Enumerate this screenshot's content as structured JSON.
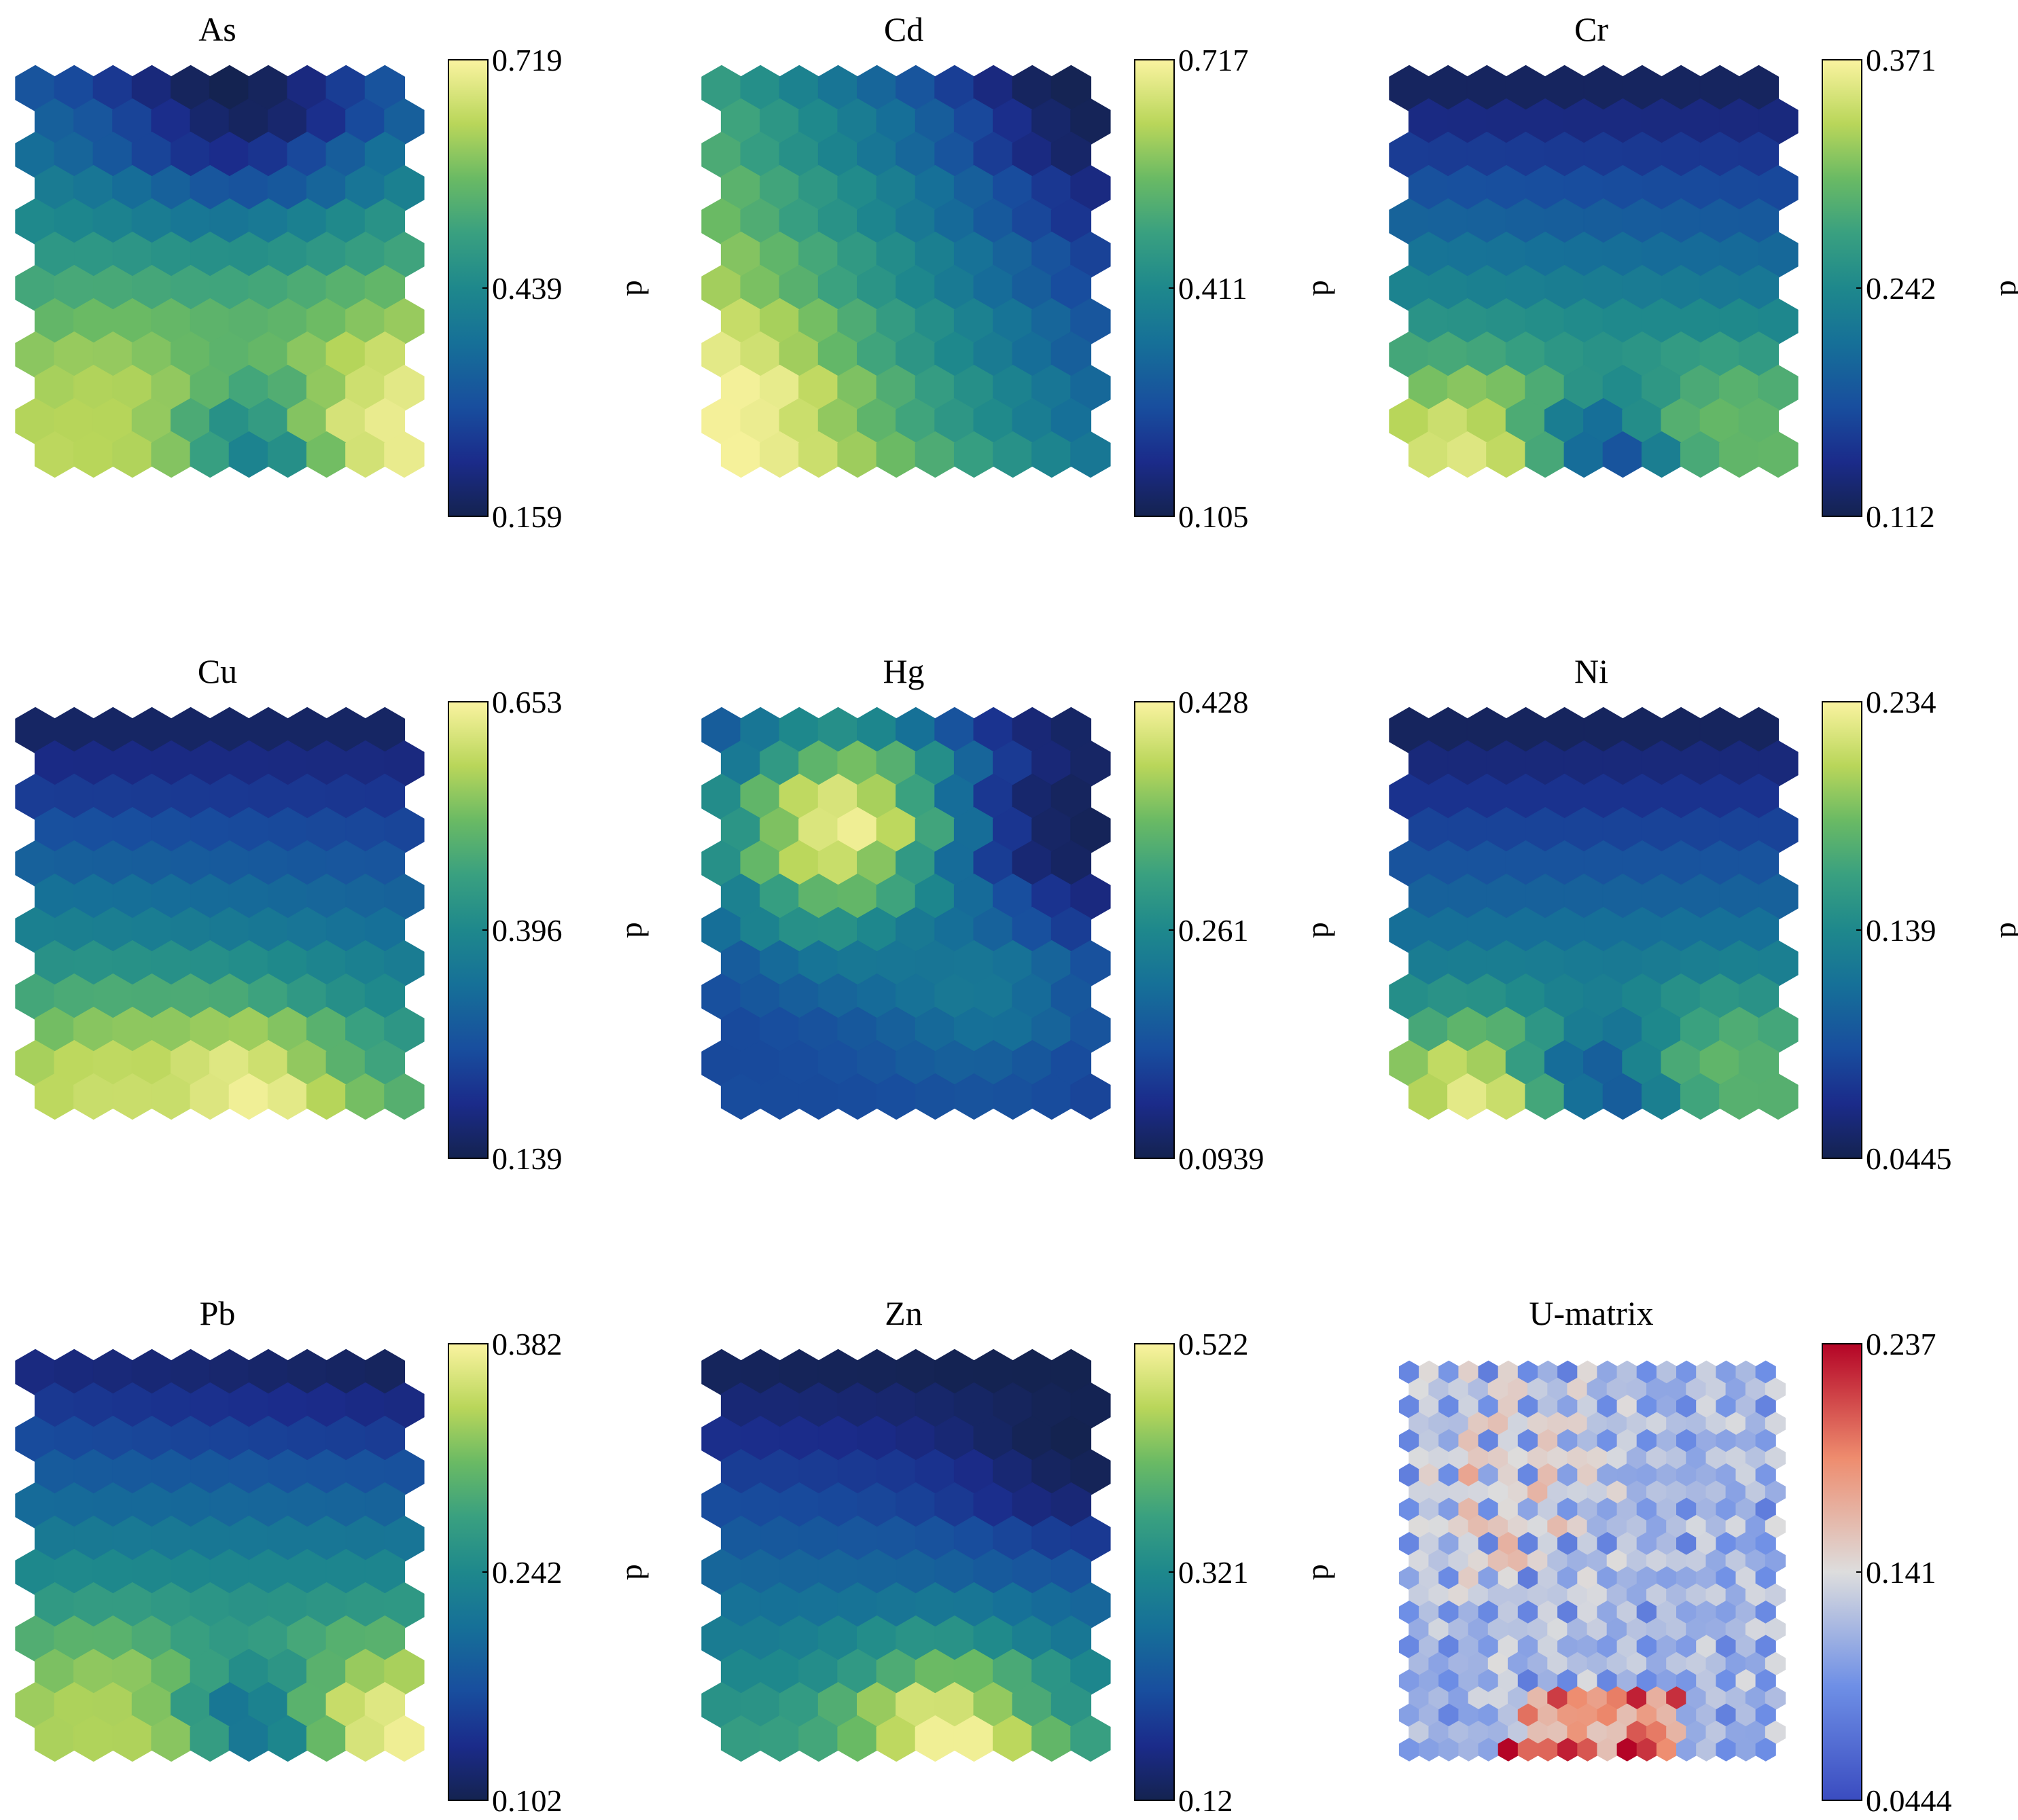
{
  "chart_data": {
    "type": "heatmap",
    "subtype": "SOM component planes (hexagonal)",
    "grid": {
      "rows": 12,
      "cols": 10,
      "cell": "hexagon"
    },
    "colorbar_label": "d",
    "panels": [
      {
        "title": "As",
        "colormap": "YlGnBu",
        "ticks": [
          "0.159",
          "0.439",
          "0.719"
        ],
        "range": [
          0.159,
          0.719
        ],
        "corners": {
          "top_left": 0.33,
          "top_right": 0.36,
          "bottom_left": 0.66,
          "bottom_right": 0.72
        },
        "features": [
          {
            "row": 0.0,
            "col": 5.0,
            "value": 0.16,
            "spread": 2.5
          },
          {
            "row": 11.0,
            "col": 5.0,
            "value": 0.36,
            "spread": 1.8
          },
          {
            "row": 10.0,
            "col": 9.5,
            "value": 0.7,
            "spread": 1.8
          },
          {
            "row": 10.0,
            "col": 1.5,
            "value": 0.64,
            "spread": 2.0
          }
        ]
      },
      {
        "title": "Cd",
        "colormap": "YlGnBu",
        "ticks": [
          "0.105",
          "0.411",
          "0.717"
        ],
        "range": [
          0.105,
          0.717
        ],
        "corners": {
          "top_left": 0.47,
          "top_right": 0.12,
          "bottom_left": 0.71,
          "bottom_right": 0.36
        },
        "features": [
          {
            "row": 9.5,
            "col": 0.0,
            "value": 0.71,
            "spread": 1.6
          },
          {
            "row": 0.0,
            "col": 9.5,
            "value": 0.11,
            "spread": 1.8
          }
        ]
      },
      {
        "title": "Cr",
        "colormap": "YlGnBu",
        "ticks": [
          "0.112",
          "0.242",
          "0.371"
        ],
        "range": [
          0.112,
          0.371
        ],
        "corners": {
          "top_left": 0.12,
          "top_right": 0.12,
          "bottom_left": 0.33,
          "bottom_right": 0.3
        },
        "features": [
          {
            "row": 11.0,
            "col": 1.5,
            "value": 0.36,
            "spread": 1.5
          },
          {
            "row": 11.0,
            "col": 5.0,
            "value": 0.17,
            "spread": 1.4
          },
          {
            "row": 10.0,
            "col": 8.0,
            "value": 0.3,
            "spread": 1.4
          }
        ]
      },
      {
        "title": "Cu",
        "colormap": "YlGnBu",
        "ticks": [
          "0.139",
          "0.396",
          "0.653"
        ],
        "range": [
          0.139,
          0.653
        ],
        "corners": {
          "top_left": 0.16,
          "top_right": 0.16,
          "bottom_left": 0.55,
          "bottom_right": 0.48
        },
        "features": [
          {
            "row": 11.0,
            "col": 5.0,
            "value": 0.65,
            "spread": 1.8
          },
          {
            "row": 11.0,
            "col": 1.5,
            "value": 0.6,
            "spread": 1.8
          }
        ]
      },
      {
        "title": "Hg",
        "colormap": "YlGnBu",
        "ticks": [
          "0.0939",
          "0.261",
          "0.428"
        ],
        "range": [
          0.0939,
          0.428
        ],
        "corners": {
          "top_left": 0.11,
          "top_right": 0.1,
          "bottom_left": 0.17,
          "bottom_right": 0.15
        },
        "features": [
          {
            "row": 3.0,
            "col": 3.0,
            "value": 0.43,
            "spread": 2.6
          },
          {
            "row": 7.5,
            "col": 6.5,
            "value": 0.24,
            "spread": 2.2
          },
          {
            "row": 3.0,
            "col": 9.0,
            "value": 0.1,
            "spread": 2.0
          }
        ]
      },
      {
        "title": "Ni",
        "colormap": "YlGnBu",
        "ticks": [
          "0.0445",
          "0.139",
          "0.234"
        ],
        "range": [
          0.0445,
          0.234
        ],
        "corners": {
          "top_left": 0.05,
          "top_right": 0.05,
          "bottom_left": 0.17,
          "bottom_right": 0.17
        },
        "features": [
          {
            "row": 11.0,
            "col": 1.5,
            "value": 0.23,
            "spread": 1.5
          },
          {
            "row": 10.5,
            "col": 5.0,
            "value": 0.09,
            "spread": 1.4
          },
          {
            "row": 10.0,
            "col": 8.0,
            "value": 0.18,
            "spread": 1.4
          }
        ]
      },
      {
        "title": "Pb",
        "colormap": "YlGnBu",
        "ticks": [
          "0.102",
          "0.242",
          "0.382"
        ],
        "range": [
          0.102,
          0.382
        ],
        "corners": {
          "top_left": 0.13,
          "top_right": 0.11,
          "bottom_left": 0.33,
          "bottom_right": 0.34
        },
        "features": [
          {
            "row": 11.0,
            "col": 8.5,
            "value": 0.38,
            "spread": 1.7
          },
          {
            "row": 10.5,
            "col": 5.0,
            "value": 0.19,
            "spread": 1.4
          },
          {
            "row": 10.5,
            "col": 1.5,
            "value": 0.34,
            "spread": 1.8
          }
        ]
      },
      {
        "title": "Zn",
        "colormap": "YlGnBu",
        "ticks": [
          "0.12",
          "0.321",
          "0.522"
        ],
        "range": [
          0.12,
          0.522
        ],
        "corners": {
          "top_left": 0.13,
          "top_right": 0.12,
          "bottom_left": 0.36,
          "bottom_right": 0.34
        },
        "features": [
          {
            "row": 11.0,
            "col": 5.5,
            "value": 0.52,
            "spread": 1.8
          },
          {
            "row": 2.0,
            "col": 9.0,
            "value": 0.12,
            "spread": 2.0
          }
        ]
      },
      {
        "title": "U-matrix",
        "colormap": "coolwarm",
        "ticks": [
          "0.0444",
          "0.141",
          "0.237"
        ],
        "range": [
          0.0444,
          0.237
        ],
        "umatrix": true
      }
    ]
  }
}
